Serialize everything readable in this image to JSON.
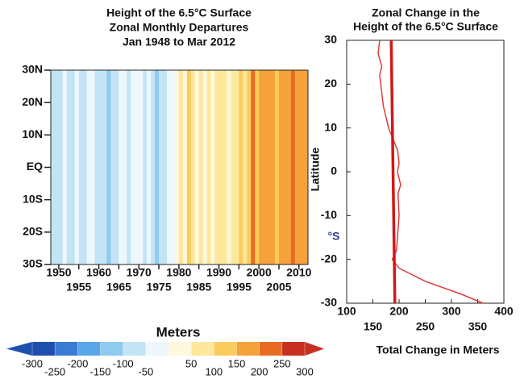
{
  "chart_data": [
    {
      "type": "heatmap",
      "title": [
        "Height of the 6.5°C Surface",
        "Zonal Monthly Departures",
        "Jan 1948 to Mar 2012"
      ],
      "x": [
        1948,
        1949,
        1950,
        1951,
        1952,
        1953,
        1954,
        1955,
        1956,
        1957,
        1958,
        1959,
        1960,
        1961,
        1962,
        1963,
        1964,
        1965,
        1966,
        1967,
        1968,
        1969,
        1970,
        1971,
        1972,
        1973,
        1974,
        1975,
        1976,
        1977,
        1978,
        1979,
        1980,
        1981,
        1982,
        1983,
        1984,
        1985,
        1986,
        1987,
        1988,
        1989,
        1990,
        1991,
        1992,
        1993,
        1994,
        1995,
        1996,
        1997,
        1998,
        1999,
        2000,
        2001,
        2002,
        2003,
        2004,
        2005,
        2006,
        2007,
        2008,
        2009,
        2010,
        2011,
        2012
      ],
      "values": [
        -60,
        -80,
        -70,
        -40,
        -90,
        -60,
        -30,
        -70,
        -90,
        -40,
        -20,
        -80,
        -100,
        -70,
        -110,
        -60,
        -90,
        -50,
        -30,
        -60,
        -40,
        -20,
        -50,
        -80,
        -30,
        -70,
        -110,
        -60,
        -90,
        -30,
        -10,
        20,
        60,
        40,
        120,
        60,
        30,
        50,
        20,
        80,
        40,
        70,
        60,
        90,
        40,
        80,
        50,
        110,
        60,
        100,
        210,
        130,
        170,
        150,
        180,
        160,
        140,
        190,
        150,
        170,
        200,
        160,
        180,
        170,
        150
      ],
      "xlim": [
        1948,
        2012.25
      ],
      "xticks": [
        1950,
        1955,
        1960,
        1965,
        1970,
        1975,
        1980,
        1985,
        1990,
        1995,
        2000,
        2005,
        2010
      ],
      "ylim": [
        -30,
        30
      ],
      "yticks": [
        {
          "value": 30,
          "label": "30N"
        },
        {
          "value": 20,
          "label": "20N"
        },
        {
          "value": 10,
          "label": "10N"
        },
        {
          "value": 0,
          "label": "EQ"
        },
        {
          "value": -10,
          "label": "10S"
        },
        {
          "value": -20,
          "label": "20S"
        },
        {
          "value": -30,
          "label": "30S"
        }
      ],
      "colorbar": {
        "title": "Meters",
        "ticks": [
          -300,
          -250,
          -200,
          -150,
          -100,
          -50,
          50,
          100,
          150,
          200,
          250,
          300
        ],
        "colors": [
          "#1f4fae",
          "#3a7bd5",
          "#5ba6e6",
          "#8fcaf0",
          "#c2e4f5",
          "#eef8fc",
          "#fef8dc",
          "#fde89c",
          "#fbcb5c",
          "#f5a23b",
          "#e86b23",
          "#c7301e"
        ]
      }
    },
    {
      "type": "line",
      "title": [
        "Zonal Change in the",
        "Height of the 6.5°C Surface"
      ],
      "x_label": "Total Change in Meters",
      "y_label": "Latitude",
      "annotation": "°S",
      "series": [
        {
          "color": "#e03a3a",
          "line_width": 1.5,
          "x": [
            163,
            160,
            167,
            163,
            165,
            170,
            180,
            190,
            197,
            200,
            197,
            203,
            198,
            200,
            197,
            195,
            187,
            200,
            250,
            320,
            360
          ],
          "y": [
            30,
            27,
            24,
            22,
            20,
            15,
            10,
            7,
            5,
            2,
            0,
            -3,
            -5,
            -10,
            -15,
            -18,
            -20,
            -22,
            -25,
            -28,
            -30
          ]
        },
        {
          "color": "#d01818",
          "line_width": 3.5,
          "x": [
            185,
            192
          ],
          "y": [
            30,
            -30
          ]
        }
      ],
      "xlim": [
        100,
        400
      ],
      "xticks": [
        100,
        150,
        200,
        250,
        300,
        350,
        400
      ],
      "ylim": [
        -30,
        30
      ],
      "yticks": [
        -30,
        -20,
        -10,
        0,
        10,
        20,
        30
      ]
    }
  ]
}
